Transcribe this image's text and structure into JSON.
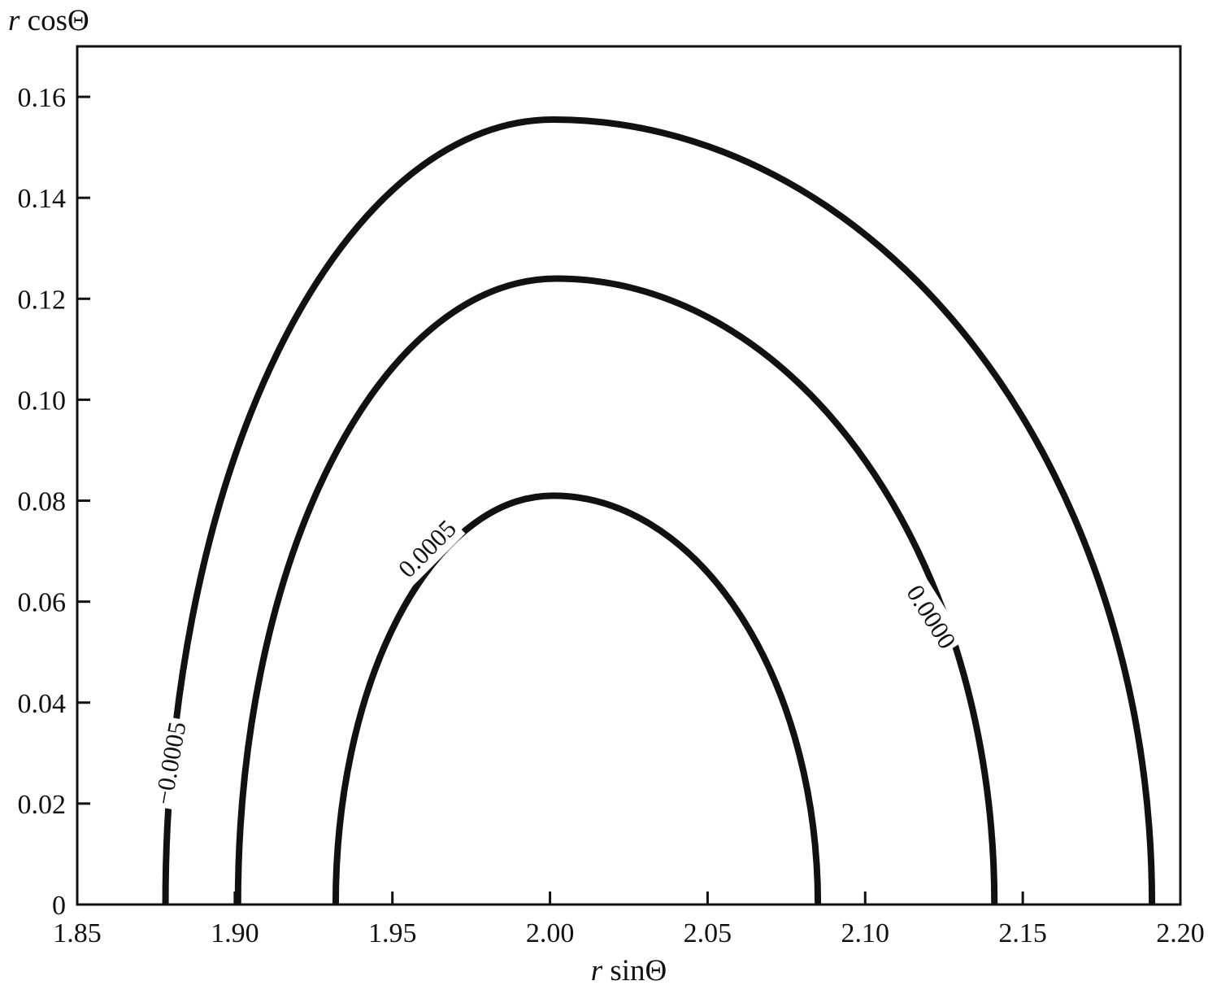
{
  "figure": {
    "background": "#ffffff",
    "line_color": "#111111",
    "line_width": 8
  },
  "chart_data": {
    "type": "contour",
    "title": "",
    "xlabel": {
      "italic": "r",
      "text": " sinΘ"
    },
    "ylabel": {
      "italic": "r",
      "text": " cosΘ"
    },
    "xlim": [
      1.85,
      2.2
    ],
    "ylim": [
      0,
      0.17
    ],
    "grid": false,
    "x_ticks": [
      {
        "v": 1.85,
        "label": "1.85"
      },
      {
        "v": 1.9,
        "label": "1.90"
      },
      {
        "v": 1.95,
        "label": "1.95"
      },
      {
        "v": 2.0,
        "label": "2.00"
      },
      {
        "v": 2.05,
        "label": "2.05"
      },
      {
        "v": 2.1,
        "label": "2.10"
      },
      {
        "v": 2.15,
        "label": "2.15"
      },
      {
        "v": 2.2,
        "label": "2.20"
      }
    ],
    "y_ticks": [
      {
        "v": 0.0,
        "label": "0"
      },
      {
        "v": 0.02,
        "label": "0.02"
      },
      {
        "v": 0.04,
        "label": "0.04"
      },
      {
        "v": 0.06,
        "label": "0.06"
      },
      {
        "v": 0.08,
        "label": "0.08"
      },
      {
        "v": 0.1,
        "label": "0.10"
      },
      {
        "v": 0.12,
        "label": "0.12"
      },
      {
        "v": 0.14,
        "label": "0.14"
      },
      {
        "v": 0.16,
        "label": "0.16"
      }
    ],
    "contours": [
      {
        "level_label": "−0.0005",
        "left_x": 1.878,
        "right_x": 2.191,
        "peak_x": 2.001,
        "peak_y": 0.1555,
        "label_x": 1.8795,
        "label_y": 0.028,
        "label_rotation": -80
      },
      {
        "level_label": "0.0000",
        "left_x": 1.901,
        "right_x": 2.141,
        "peak_x": 2.002,
        "peak_y": 0.124,
        "label_x": 2.121,
        "label_y": 0.057,
        "label_rotation": 58
      },
      {
        "level_label": "0.0005",
        "left_x": 1.932,
        "right_x": 2.085,
        "peak_x": 2.001,
        "peak_y": 0.081,
        "label_x": 1.961,
        "label_y": 0.0705,
        "label_rotation": -45
      }
    ]
  }
}
